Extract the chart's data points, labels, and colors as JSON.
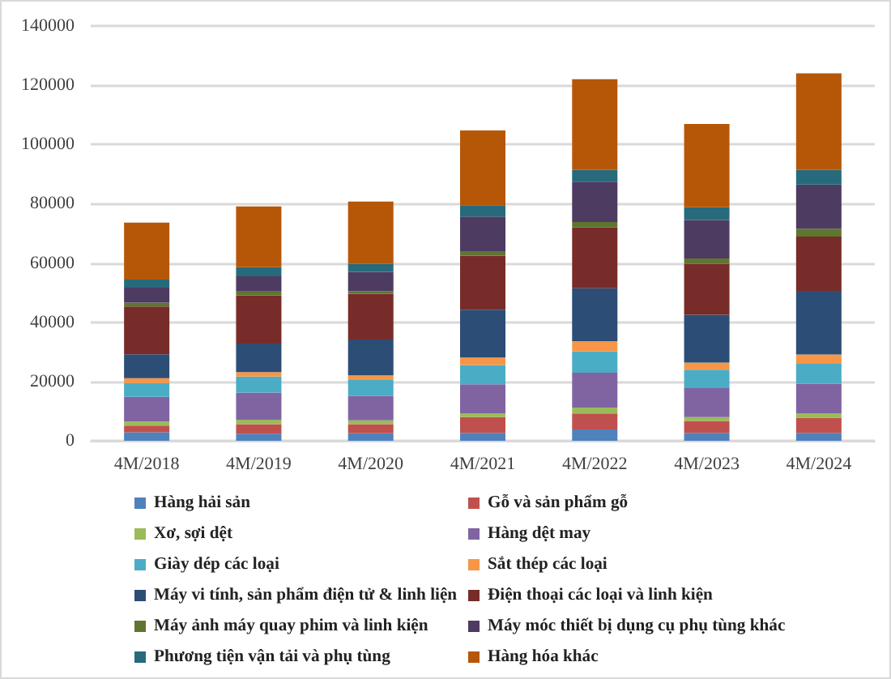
{
  "chart_data": {
    "type": "bar",
    "stacked": true,
    "categories": [
      "4M/2018",
      "4M/2019",
      "4M/2020",
      "4M/2021",
      "4M/2022",
      "4M/2023",
      "4M/2024"
    ],
    "series": [
      {
        "name": "Hàng hải sản",
        "color": "#4f81bd",
        "values": [
          2900,
          2400,
          2500,
          2700,
          3800,
          2700,
          2700
        ]
      },
      {
        "name": "Gỗ và sản phẩm gỗ",
        "color": "#c0504d",
        "values": [
          2200,
          3200,
          3100,
          5300,
          5400,
          4000,
          5100
        ]
      },
      {
        "name": "Xơ, sợi dệt",
        "color": "#9bbb59",
        "values": [
          1400,
          1500,
          1300,
          1300,
          2000,
          1300,
          1500
        ]
      },
      {
        "name": "Hàng dệt may",
        "color": "#8064a2",
        "values": [
          8300,
          9200,
          8300,
          9800,
          11800,
          9800,
          10000
        ]
      },
      {
        "name": "Giày dép các loại",
        "color": "#4bacc6",
        "values": [
          4700,
          5400,
          5300,
          6500,
          7200,
          6200,
          6700
        ]
      },
      {
        "name": "Sắt thép các loại",
        "color": "#f79646",
        "values": [
          1600,
          1500,
          1600,
          2500,
          3400,
          2400,
          3100
        ]
      },
      {
        "name": "Máy vi tính, sản phẩm điện tử & linh liện",
        "color": "#2c4d75",
        "values": [
          8100,
          9600,
          12100,
          16100,
          17900,
          16100,
          21500
        ]
      },
      {
        "name": "Điện thoại các loại và linh kiện",
        "color": "#772c2a",
        "values": [
          16100,
          16300,
          15400,
          18300,
          20500,
          17200,
          18300
        ]
      },
      {
        "name": "Máy ảnh máy quay phim và linh kiện",
        "color": "#5f7530",
        "values": [
          1300,
          1300,
          900,
          1300,
          1800,
          1800,
          2700
        ]
      },
      {
        "name": "Máy móc thiết bị dụng cụ phụ tùng khác",
        "color": "#4d3b62",
        "values": [
          5100,
          5100,
          6500,
          11900,
          13600,
          13000,
          14900
        ]
      },
      {
        "name": "Phương tiện vận tải và phụ tùng",
        "color": "#276a7c",
        "values": [
          2700,
          3100,
          2700,
          3800,
          4000,
          4300,
          4900
        ]
      },
      {
        "name": "Hàng hóa khác",
        "color": "#b65708",
        "values": [
          19200,
          20500,
          21000,
          25200,
          30600,
          28100,
          32600
        ]
      }
    ],
    "ylim": [
      0,
      140000
    ],
    "yticks": [
      0,
      20000,
      40000,
      60000,
      80000,
      100000,
      120000,
      140000
    ],
    "grid": "y",
    "legend": "bottom"
  }
}
